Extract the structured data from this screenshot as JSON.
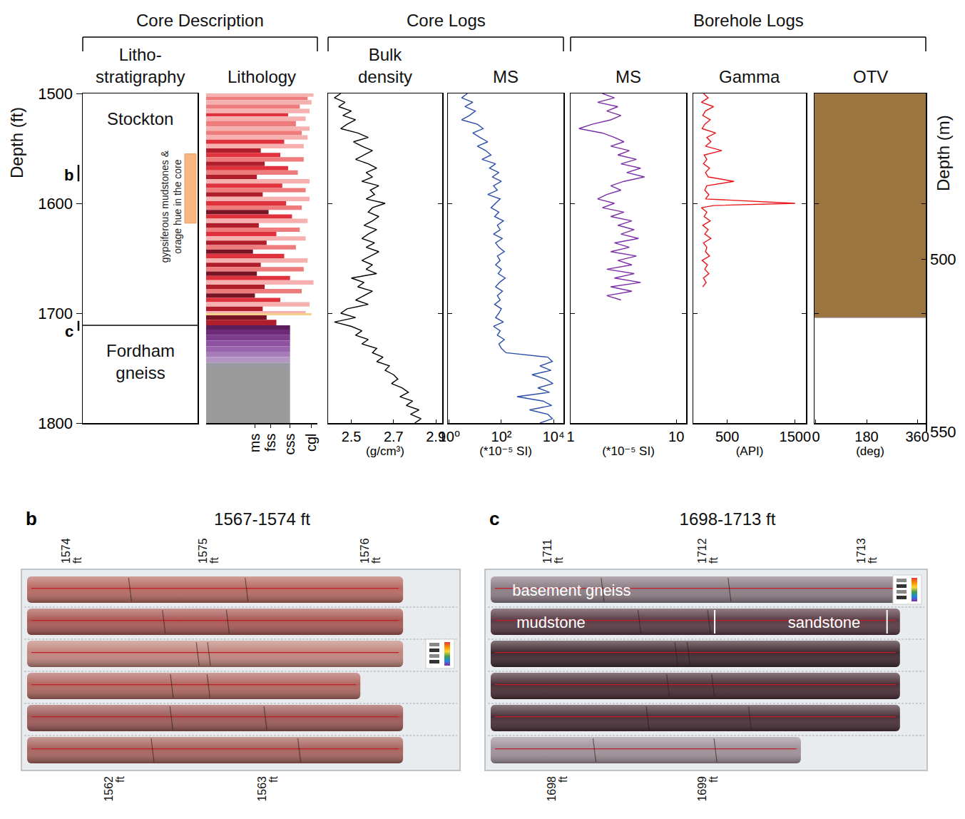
{
  "figure": {
    "depth_axis": {
      "title": "Depth (ft)",
      "ylim": [
        1500,
        1800
      ],
      "yticks": [
        1500,
        1600,
        1700,
        1800
      ]
    },
    "depth_axis_m": {
      "title": "Depth (m)",
      "ylim": [
        452,
        550
      ],
      "yticks": [
        500,
        550
      ]
    },
    "markers": [
      {
        "label": "b",
        "depth": [
          1565,
          1580
        ]
      },
      {
        "label": "c",
        "depth": [
          1707,
          1716
        ]
      }
    ]
  },
  "chart_data": [
    {
      "group": "Core Description",
      "title": "Litho-stratigraphy",
      "type": "stratigraphy",
      "units": [
        {
          "name": "Stockton",
          "top": 1500,
          "base": 1711
        },
        {
          "name": "Fordham gneiss",
          "top": 1711,
          "base": 1800
        }
      ],
      "annotation": {
        "text": "gypsiferous mudstones & orage hue in the core",
        "depth": [
          1555,
          1618
        ],
        "color": "#f8b680"
      }
    },
    {
      "group": "Core Description",
      "title": "Lithology",
      "type": "bar",
      "orientation": "horizontal",
      "xlim": [
        0,
        5.7
      ],
      "xticks": [
        {
          "value": 2.5,
          "label": "ms"
        },
        {
          "value": 3.3,
          "label": "fss"
        },
        {
          "value": 4.3,
          "label": "css"
        },
        {
          "value": 5.4,
          "label": "cgl"
        }
      ],
      "depth_bins": [
        1500,
        1503,
        1506,
        1510,
        1514,
        1518,
        1521,
        1525,
        1530,
        1534,
        1538,
        1542,
        1546,
        1550,
        1554,
        1558,
        1562,
        1566,
        1570,
        1574,
        1578,
        1582,
        1586,
        1590,
        1594,
        1598,
        1602,
        1606,
        1610,
        1614,
        1618,
        1622,
        1626,
        1630,
        1634,
        1638,
        1642,
        1646,
        1650,
        1654,
        1658,
        1662,
        1666,
        1670,
        1674,
        1678,
        1682,
        1686,
        1690,
        1694,
        1698,
        1700,
        1702,
        1706,
        1711,
        1715,
        1720,
        1725,
        1730,
        1735,
        1740,
        1745,
        1750,
        1800
      ],
      "values": [
        5.5,
        5.2,
        5.4,
        4.8,
        5.3,
        4.2,
        5.1,
        4.6,
        5.3,
        4.9,
        5.2,
        4.0,
        5.0,
        2.8,
        3.8,
        5.0,
        3.0,
        4.2,
        4.7,
        2.6,
        5.3,
        3.9,
        5.1,
        2.9,
        5.3,
        4.1,
        4.9,
        3.2,
        4.4,
        5.2,
        2.7,
        4.8,
        3.6,
        5.1,
        3.1,
        4.6,
        2.4,
        4.0,
        5.2,
        2.8,
        5.0,
        2.6,
        4.3,
        5.5,
        3.0,
        4.9,
        2.5,
        3.8,
        5.3,
        2.9,
        5.1,
        5.4,
        3.1,
        3.6,
        4.3,
        4.3,
        4.3,
        4.3,
        4.3,
        4.3,
        4.3,
        4.3,
        4.3
      ],
      "colors": [
        "#f6b0b0",
        "#ee7c7c",
        "#f6b0b0",
        "#ee7c7c",
        "#f6b0b0",
        "#e0323c",
        "#f6b0b0",
        "#ee7c7c",
        "#f6b0b0",
        "#ee7c7c",
        "#f6b0b0",
        "#e0323c",
        "#f6b0b0",
        "#b01e2c",
        "#e0323c",
        "#ee7c7c",
        "#b01e2c",
        "#e0323c",
        "#ee7c7c",
        "#b01e2c",
        "#f6b0b0",
        "#e0323c",
        "#ee7c7c",
        "#b01e2c",
        "#f6b0b0",
        "#e0323c",
        "#ee7c7c",
        "#781424",
        "#e0323c",
        "#f6b0b0",
        "#b01e2c",
        "#ee7c7c",
        "#e0323c",
        "#f6b0b0",
        "#b01e2c",
        "#ee7c7c",
        "#781424",
        "#e0323c",
        "#f6b0b0",
        "#b01e2c",
        "#ee7c7c",
        "#781424",
        "#e0323c",
        "#f6b0b0",
        "#b01e2c",
        "#ee7c7c",
        "#781424",
        "#e0323c",
        "#f6b0b0",
        "#b01e2c",
        "#f6b0b0",
        "#f3d08a",
        "#781424",
        "#b01e2c",
        "#5a1e5a",
        "#6e2a78",
        "#7e3c8e",
        "#8e50a0",
        "#9a64ac",
        "#a87cb8",
        "#b496c4",
        "#9a9aa4",
        "#9b9b9b"
      ]
    },
    {
      "group": "Core Logs",
      "title": "Bulk density",
      "type": "line",
      "color": "#000000",
      "xlabel": "(g/cm³)",
      "xlim": [
        2.39,
        2.93
      ],
      "xticks": [
        2.5,
        2.7,
        2.9
      ],
      "depths": [
        1500,
        1504,
        1508,
        1512,
        1516,
        1520,
        1524,
        1528,
        1532,
        1536,
        1540,
        1544,
        1548,
        1552,
        1556,
        1560,
        1564,
        1568,
        1572,
        1576,
        1580,
        1584,
        1588,
        1592,
        1596,
        1600,
        1604,
        1608,
        1612,
        1616,
        1620,
        1624,
        1628,
        1632,
        1636,
        1640,
        1644,
        1648,
        1652,
        1656,
        1660,
        1664,
        1668,
        1672,
        1676,
        1680,
        1684,
        1688,
        1692,
        1696,
        1700,
        1704,
        1708,
        1712,
        1716,
        1720,
        1724,
        1728,
        1732,
        1736,
        1740,
        1744,
        1748,
        1752,
        1756,
        1760,
        1764,
        1768,
        1772,
        1776,
        1780,
        1784,
        1788,
        1792,
        1796,
        1800
      ],
      "values": [
        2.45,
        2.42,
        2.47,
        2.44,
        2.5,
        2.46,
        2.52,
        2.48,
        2.45,
        2.53,
        2.58,
        2.51,
        2.55,
        2.6,
        2.56,
        2.52,
        2.58,
        2.62,
        2.57,
        2.6,
        2.55,
        2.63,
        2.59,
        2.61,
        2.57,
        2.66,
        2.6,
        2.58,
        2.63,
        2.6,
        2.56,
        2.62,
        2.58,
        2.55,
        2.61,
        2.57,
        2.63,
        2.59,
        2.55,
        2.6,
        2.57,
        2.62,
        2.5,
        2.56,
        2.53,
        2.6,
        2.56,
        2.52,
        2.58,
        2.48,
        2.45,
        2.52,
        2.42,
        2.5,
        2.55,
        2.52,
        2.58,
        2.55,
        2.62,
        2.6,
        2.65,
        2.62,
        2.68,
        2.66,
        2.7,
        2.72,
        2.69,
        2.74,
        2.77,
        2.73,
        2.79,
        2.76,
        2.82,
        2.78,
        2.83,
        2.8
      ]
    },
    {
      "group": "Core Logs",
      "title": "MS",
      "type": "line",
      "color": "#2b4ea8",
      "xlabel": "(*10⁻⁵ SI)",
      "log": "x",
      "xlim": [
        0.89,
        24000
      ],
      "xticks": [
        {
          "value": 1,
          "label": "10⁰"
        },
        {
          "value": 100,
          "label": "10²"
        },
        {
          "value": 10000,
          "label": "10⁴"
        }
      ],
      "depths": [
        1500,
        1504,
        1508,
        1512,
        1516,
        1520,
        1524,
        1528,
        1532,
        1536,
        1540,
        1544,
        1548,
        1552,
        1556,
        1560,
        1564,
        1568,
        1572,
        1576,
        1580,
        1584,
        1588,
        1592,
        1596,
        1600,
        1604,
        1608,
        1612,
        1616,
        1620,
        1624,
        1628,
        1632,
        1636,
        1640,
        1644,
        1648,
        1652,
        1656,
        1660,
        1664,
        1668,
        1672,
        1676,
        1680,
        1684,
        1688,
        1692,
        1696,
        1700,
        1704,
        1708,
        1712,
        1716,
        1720,
        1724,
        1728,
        1732,
        1736,
        1740,
        1744,
        1748,
        1752,
        1756,
        1760,
        1764,
        1768,
        1772,
        1776,
        1780,
        1784,
        1788,
        1792,
        1796,
        1800
      ],
      "values": [
        5,
        3,
        8,
        4,
        10,
        6,
        3,
        12,
        20,
        8,
        15,
        30,
        12,
        25,
        40,
        18,
        60,
        35,
        80,
        45,
        100,
        50,
        70,
        30,
        90,
        60,
        40,
        80,
        55,
        120,
        70,
        90,
        50,
        110,
        60,
        80,
        130,
        70,
        90,
        60,
        100,
        75,
        140,
        85,
        60,
        110,
        70,
        90,
        55,
        100,
        80,
        60,
        120,
        50,
        90,
        70,
        130,
        80,
        100,
        150,
        6000,
        9000,
        3000,
        8000,
        1500,
        5000,
        9500,
        2500,
        7000,
        400,
        4000,
        8500,
        1200,
        6000,
        9000,
        3000
      ]
    },
    {
      "group": "Borehole Logs",
      "title": "MS",
      "type": "line",
      "color": "#7b2fa8",
      "xlabel": "(*10⁻⁵ SI)",
      "log": "x",
      "xlim": [
        1,
        12.4
      ],
      "xticks": [
        1,
        10
      ],
      "depths": [
        1500,
        1504,
        1508,
        1512,
        1516,
        1520,
        1524,
        1528,
        1532,
        1536,
        1540,
        1544,
        1548,
        1552,
        1556,
        1560,
        1564,
        1568,
        1572,
        1576,
        1580,
        1584,
        1588,
        1592,
        1596,
        1600,
        1604,
        1608,
        1612,
        1616,
        1620,
        1624,
        1628,
        1632,
        1636,
        1640,
        1644,
        1648,
        1652,
        1656,
        1660,
        1664,
        1668,
        1672,
        1676,
        1680,
        1684,
        1688
      ],
      "values": [
        2.0,
        2.6,
        1.8,
        2.8,
        2.2,
        3.0,
        2.4,
        1.6,
        1.2,
        2.0,
        2.6,
        3.2,
        2.4,
        3.6,
        2.8,
        4.2,
        3.0,
        4.6,
        3.4,
        5.0,
        3.2,
        2.4,
        3.0,
        2.2,
        1.8,
        2.6,
        2.0,
        3.2,
        2.4,
        3.8,
        2.8,
        4.0,
        3.0,
        4.4,
        2.6,
        3.6,
        2.4,
        4.2,
        2.8,
        3.8,
        2.2,
        4.0,
        2.6,
        4.6,
        2.4,
        3.8,
        2.2,
        3.0
      ]
    },
    {
      "group": "Borehole Logs",
      "title": "Gamma",
      "type": "line",
      "color": "#e8151b",
      "xlabel": "(API)",
      "xlim": [
        0,
        1660
      ],
      "xticks": [
        500,
        1500
      ],
      "depths": [
        1500,
        1504,
        1508,
        1512,
        1516,
        1520,
        1524,
        1528,
        1532,
        1536,
        1540,
        1544,
        1548,
        1552,
        1556,
        1560,
        1564,
        1568,
        1572,
        1576,
        1580,
        1584,
        1588,
        1592,
        1596,
        1600,
        1602,
        1604,
        1608,
        1612,
        1616,
        1620,
        1624,
        1628,
        1632,
        1636,
        1640,
        1644,
        1648,
        1652,
        1656,
        1660,
        1664,
        1668,
        1672,
        1676
      ],
      "values": [
        150,
        220,
        120,
        300,
        180,
        140,
        250,
        170,
        130,
        330,
        200,
        260,
        180,
        420,
        160,
        200,
        150,
        240,
        180,
        220,
        600,
        200,
        170,
        230,
        180,
        1500,
        300,
        120,
        200,
        160,
        250,
        140,
        220,
        170,
        260,
        150,
        200,
        180,
        240,
        130,
        210,
        170,
        230,
        150,
        190,
        140
      ]
    },
    {
      "group": "Borehole Logs",
      "title": "OTV",
      "type": "image",
      "color": "#9b7440",
      "xlabel": "(deg)",
      "xlim": [
        -5,
        390
      ],
      "xticks": [
        0,
        180,
        360
      ],
      "interval": [
        1500,
        1704
      ]
    }
  ],
  "core_photos": [
    {
      "letter": "b",
      "title": "1567-1574 ft",
      "top_labels": [
        "1574 ft",
        "1575 ft",
        "1576 ft"
      ],
      "bottom_labels": [
        "1562 ft",
        "1563 ft"
      ]
    },
    {
      "letter": "c",
      "title": "1698-1713 ft",
      "top_labels": [
        "1711 ft",
        "1712 ft",
        "1713 ft"
      ],
      "bottom_labels": [
        "1698 ft",
        "1699 ft"
      ],
      "labels": [
        "basement gneiss",
        "mudstone",
        "sandstone"
      ]
    }
  ]
}
